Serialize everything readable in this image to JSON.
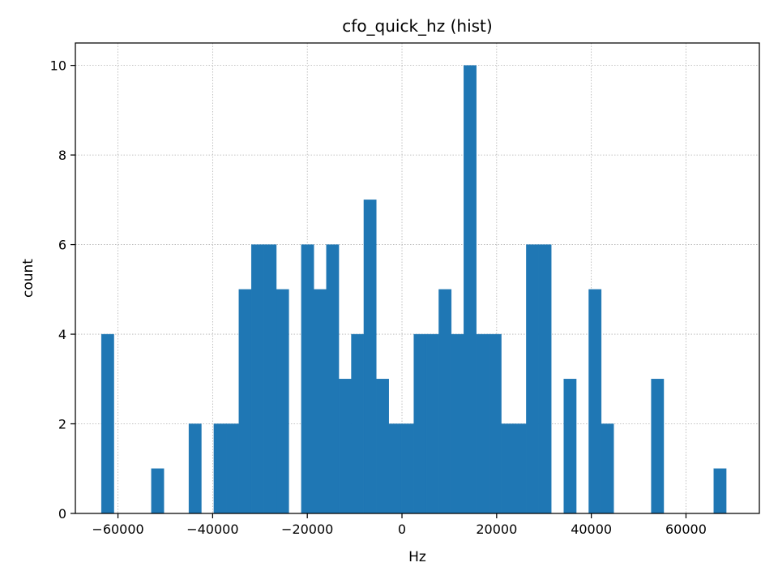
{
  "chart_data": {
    "type": "bar",
    "title": "cfo_quick_hz (hist)",
    "xlabel": "Hz",
    "ylabel": "count",
    "xlim": [
      -69000,
      75500
    ],
    "ylim": [
      0,
      10.5
    ],
    "xticks": [
      -60000,
      -40000,
      -20000,
      0,
      20000,
      40000,
      60000
    ],
    "xtick_labels": [
      "−60000",
      "−40000",
      "−20000",
      "0",
      "20000",
      "40000",
      "60000"
    ],
    "yticks": [
      0,
      2,
      4,
      6,
      8,
      10
    ],
    "ytick_labels": [
      "0",
      "2",
      "4",
      "6",
      "8",
      "10"
    ],
    "grid": true,
    "bar_color": "#1f77b4",
    "bin_start": -63500,
    "bin_width": 2640,
    "counts": [
      4,
      0,
      0,
      0,
      1,
      0,
      0,
      2,
      0,
      2,
      2,
      5,
      6,
      6,
      5,
      0,
      6,
      5,
      6,
      3,
      4,
      7,
      3,
      2,
      2,
      4,
      4,
      5,
      4,
      10,
      4,
      4,
      2,
      2,
      6,
      6,
      0,
      3,
      0,
      5,
      2,
      0,
      0,
      0,
      3,
      0,
      0,
      0,
      0,
      1
    ]
  }
}
